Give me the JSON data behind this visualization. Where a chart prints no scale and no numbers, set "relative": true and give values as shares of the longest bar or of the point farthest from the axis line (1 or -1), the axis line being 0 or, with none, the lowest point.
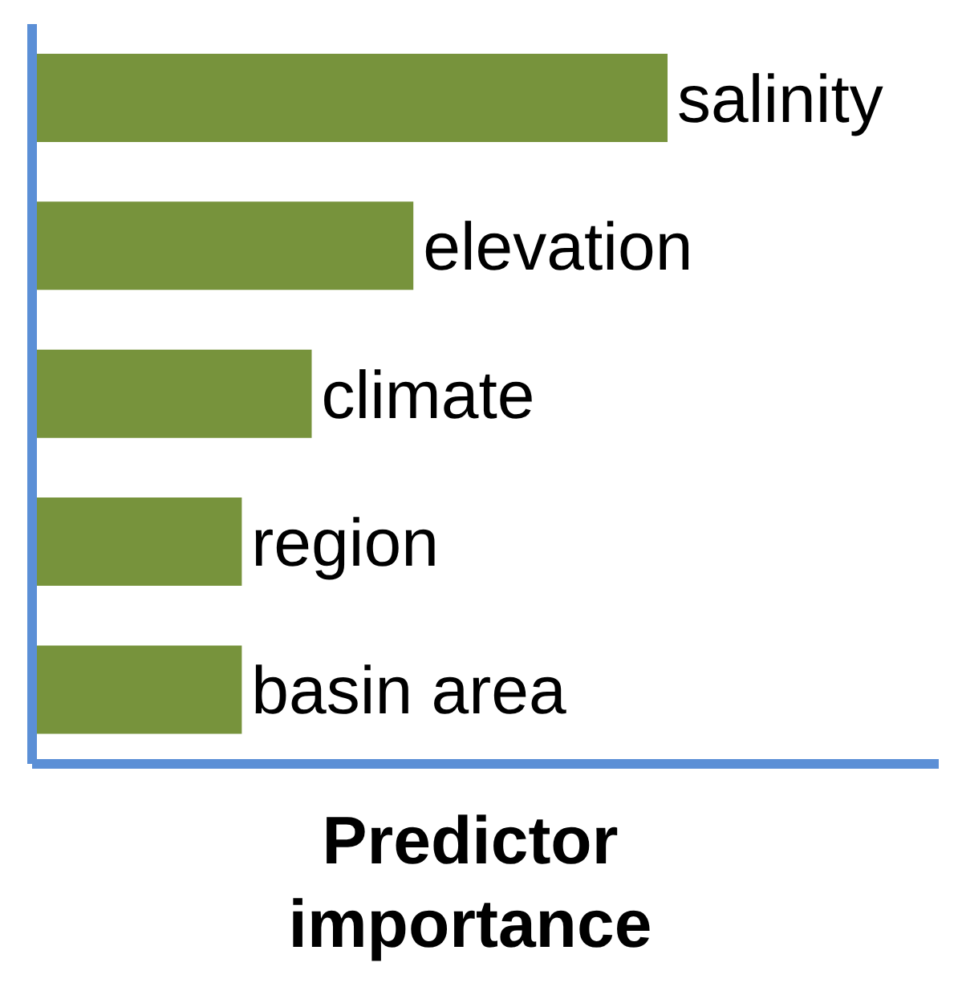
{
  "chart_data": {
    "type": "bar",
    "orientation": "horizontal",
    "relative": true,
    "xlabel": "Predictor importance",
    "categories": [
      "salinity",
      "elevation",
      "climate",
      "region",
      "basin area"
    ],
    "values": [
      1,
      0.6,
      0.44,
      0.33,
      0.33
    ],
    "color": "#77933c",
    "grid": false
  }
}
